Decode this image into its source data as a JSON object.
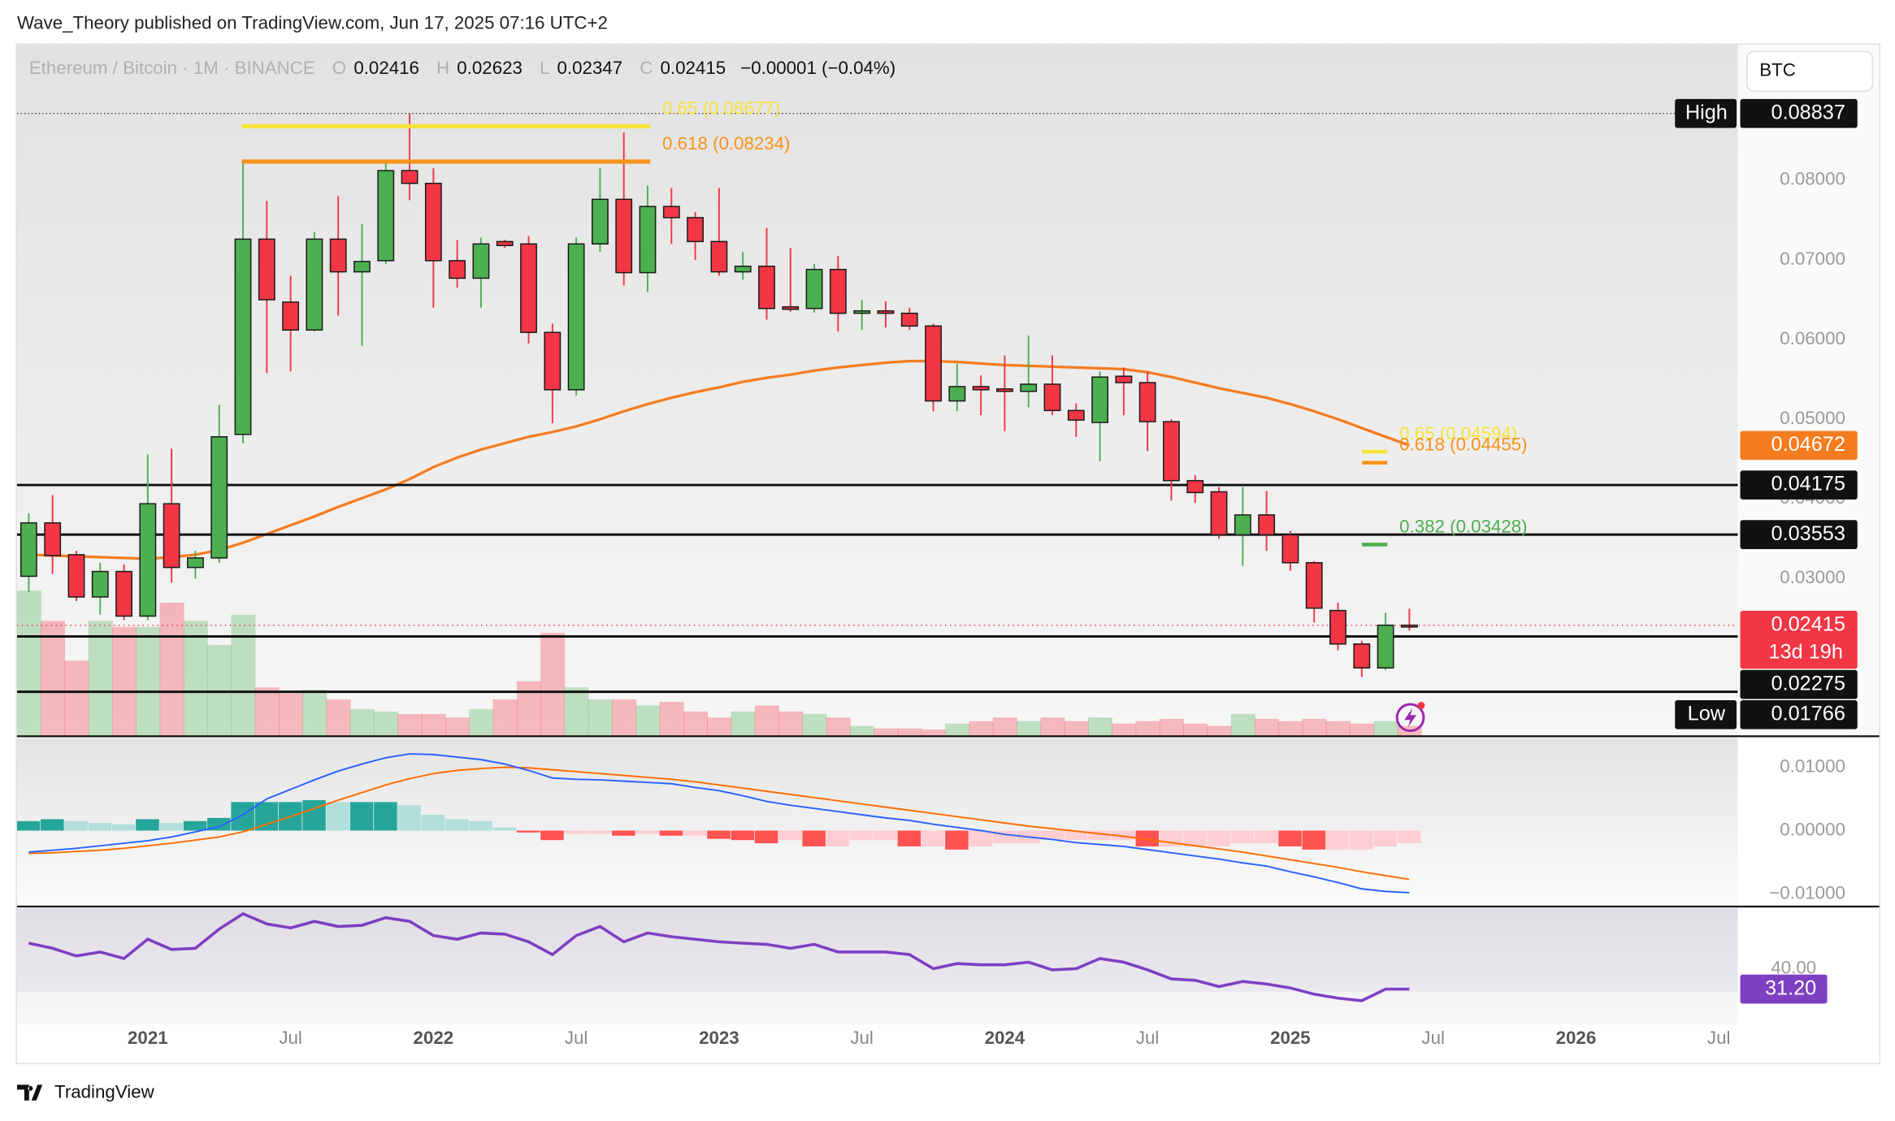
{
  "header": {
    "text": "Wave_Theory published on TradingView.com, Jun 17, 2025 07:16 UTC+2"
  },
  "currency_button": "BTC",
  "footer": {
    "logo": "TradingView"
  },
  "chart_data": [
    {
      "type": "candlestick",
      "title": "Ethereum / Bitcoin · 1M · BINANCE",
      "ohlc_letters": [
        "O",
        "H",
        "L",
        "C"
      ],
      "change": "−0.00001 (−0.04%)",
      "x": [
        "2020-08",
        "2020-09",
        "2020-10",
        "2020-11",
        "2020-12",
        "2021-01",
        "2021-02",
        "2021-03",
        "2021-04",
        "2021-05",
        "2021-06",
        "2021-07",
        "2021-08",
        "2021-09",
        "2021-10",
        "2021-11",
        "2021-12",
        "2022-01",
        "2022-02",
        "2022-03",
        "2022-04",
        "2022-05",
        "2022-06",
        "2022-07",
        "2022-08",
        "2022-09",
        "2022-10",
        "2022-11",
        "2022-12",
        "2023-01",
        "2023-02",
        "2023-03",
        "2023-04",
        "2023-05",
        "2023-06",
        "2023-07",
        "2023-08",
        "2023-09",
        "2023-10",
        "2023-11",
        "2023-12",
        "2024-01",
        "2024-02",
        "2024-03",
        "2024-04",
        "2024-05",
        "2024-06",
        "2024-07",
        "2024-08",
        "2024-09",
        "2024-10",
        "2024-11",
        "2024-12",
        "2025-01",
        "2025-02",
        "2025-03",
        "2025-04",
        "2025-05",
        "2025-06"
      ],
      "open": [
        0.0303,
        0.037,
        0.033,
        0.0277,
        0.0309,
        0.0253,
        0.0394,
        0.0314,
        0.0326,
        0.0481,
        0.0726,
        0.0647,
        0.0612,
        0.0726,
        0.0685,
        0.0699,
        0.0812,
        0.0796,
        0.0699,
        0.0677,
        0.0723,
        0.072,
        0.0609,
        0.0537,
        0.072,
        0.0776,
        0.0684,
        0.0767,
        0.0753,
        0.0723,
        0.0685,
        0.0692,
        0.0641,
        0.0639,
        0.0688,
        0.0633,
        0.0636,
        0.0633,
        0.0617,
        0.0523,
        0.0541,
        0.0538,
        0.0535,
        0.0544,
        0.0511,
        0.0496,
        0.0554,
        0.0546,
        0.0497,
        0.0423,
        0.0409,
        0.0355,
        0.038,
        0.0355,
        0.032,
        0.026,
        0.0218,
        0.0188,
        0.02416
      ],
      "high": [
        0.0382,
        0.0405,
        0.0335,
        0.032,
        0.0318,
        0.0456,
        0.0463,
        0.0335,
        0.0518,
        0.0825,
        0.0774,
        0.068,
        0.0735,
        0.078,
        0.0745,
        0.0825,
        0.08837,
        0.0815,
        0.0725,
        0.0728,
        0.0725,
        0.073,
        0.062,
        0.0728,
        0.0815,
        0.086,
        0.0793,
        0.079,
        0.076,
        0.079,
        0.071,
        0.074,
        0.0715,
        0.0695,
        0.0705,
        0.065,
        0.0648,
        0.064,
        0.062,
        0.057,
        0.0555,
        0.058,
        0.0605,
        0.058,
        0.052,
        0.056,
        0.0565,
        0.056,
        0.05,
        0.043,
        0.0415,
        0.0415,
        0.041,
        0.036,
        0.0322,
        0.027,
        0.0222,
        0.0257,
        0.02623
      ],
      "low": [
        0.0283,
        0.0306,
        0.0272,
        0.0255,
        0.0248,
        0.0248,
        0.0295,
        0.03,
        0.032,
        0.047,
        0.0558,
        0.056,
        0.061,
        0.063,
        0.0592,
        0.0695,
        0.0775,
        0.064,
        0.0665,
        0.064,
        0.0715,
        0.0595,
        0.0495,
        0.053,
        0.071,
        0.0668,
        0.066,
        0.072,
        0.07,
        0.068,
        0.0675,
        0.0625,
        0.0635,
        0.0634,
        0.061,
        0.0612,
        0.0615,
        0.0612,
        0.051,
        0.051,
        0.0505,
        0.0485,
        0.0515,
        0.0505,
        0.0478,
        0.0447,
        0.0505,
        0.046,
        0.0398,
        0.0395,
        0.035,
        0.0316,
        0.0335,
        0.031,
        0.0245,
        0.021,
        0.01766,
        0.0185,
        0.02347
      ],
      "close": [
        0.037,
        0.0329,
        0.0277,
        0.0309,
        0.0253,
        0.0394,
        0.0314,
        0.0326,
        0.0478,
        0.0726,
        0.065,
        0.0612,
        0.0726,
        0.0685,
        0.0698,
        0.0812,
        0.0796,
        0.0699,
        0.0677,
        0.072,
        0.0718,
        0.0609,
        0.0537,
        0.072,
        0.0776,
        0.0684,
        0.0767,
        0.0753,
        0.0723,
        0.0685,
        0.0692,
        0.0639,
        0.0638,
        0.0688,
        0.0633,
        0.0636,
        0.0633,
        0.0617,
        0.0523,
        0.0541,
        0.0537,
        0.0535,
        0.0544,
        0.0511,
        0.0499,
        0.0553,
        0.0546,
        0.0497,
        0.0423,
        0.0408,
        0.0355,
        0.038,
        0.0355,
        0.032,
        0.0263,
        0.0218,
        0.0188,
        0.02416,
        0.02415
      ],
      "up_color": "#4caf50",
      "down_color": "#f23645",
      "xlim": [
        "2020-07",
        "2026-08"
      ],
      "xticks": [
        {
          "value": "2021-01",
          "label": "2021"
        },
        {
          "value": "2021-07",
          "label": "Jul"
        },
        {
          "value": "2022-01",
          "label": "2022"
        },
        {
          "value": "2022-07",
          "label": "Jul"
        },
        {
          "value": "2023-01",
          "label": "2023"
        },
        {
          "value": "2023-07",
          "label": "Jul"
        },
        {
          "value": "2024-01",
          "label": "2024"
        },
        {
          "value": "2024-07",
          "label": "Jul"
        },
        {
          "value": "2025-01",
          "label": "2025"
        },
        {
          "value": "2025-07",
          "label": "Jul"
        },
        {
          "value": "2026-01",
          "label": "2026"
        },
        {
          "value": "2026-07",
          "label": "Jul"
        }
      ],
      "ylim": [
        0.0103,
        0.097
      ],
      "yticks": [
        {
          "value": 0.03,
          "label": "0.03000"
        },
        {
          "value": 0.04,
          "label": "0.04000"
        },
        {
          "value": 0.05,
          "label": "0.05000"
        },
        {
          "value": 0.06,
          "label": "0.06000"
        },
        {
          "value": 0.07,
          "label": "0.07000"
        },
        {
          "value": 0.08,
          "label": "0.08000"
        }
      ],
      "moving_average": {
        "color": "#f57c1f",
        "values": [
          0.033,
          0.0329,
          0.0328,
          0.0327,
          0.0326,
          0.0325,
          0.0327,
          0.033,
          0.0336,
          0.0345,
          0.0356,
          0.0367,
          0.0378,
          0.039,
          0.0401,
          0.0412,
          0.0425,
          0.044,
          0.0452,
          0.0462,
          0.047,
          0.0478,
          0.0484,
          0.0491,
          0.05,
          0.051,
          0.0519,
          0.0527,
          0.0534,
          0.054,
          0.0547,
          0.0552,
          0.0556,
          0.0561,
          0.0565,
          0.0568,
          0.0571,
          0.0573,
          0.0573,
          0.0572,
          0.057,
          0.0568,
          0.0567,
          0.0566,
          0.0565,
          0.0564,
          0.0563,
          0.0559,
          0.0553,
          0.0546,
          0.0539,
          0.0533,
          0.0527,
          0.0519,
          0.051,
          0.05,
          0.0489,
          0.0478,
          0.04672
        ]
      },
      "volume": {
        "values": [
          120,
          95,
          62,
          95,
          90,
          90,
          110,
          95,
          75,
          100,
          40,
          35,
          38,
          30,
          22,
          20,
          18,
          18,
          15,
          22,
          30,
          45,
          85,
          40,
          30,
          30,
          25,
          28,
          20,
          15,
          20,
          25,
          20,
          18,
          15,
          8,
          6,
          6,
          5,
          10,
          12,
          15,
          12,
          15,
          12,
          15,
          10,
          12,
          14,
          10,
          8,
          18,
          14,
          12,
          14,
          12,
          10,
          12,
          8
        ]
      },
      "levels": [
        0.04175,
        0.03553,
        0.02275
      ],
      "unlabeled_levels": [
        0.0158
      ],
      "high_label": "High",
      "low_label": "Low",
      "countdown": "13d 19h",
      "fibs": [
        {
          "label": "0.65 (0.08677)",
          "value": 0.08677,
          "color": "#f7e23b"
        },
        {
          "label": "0.618 (0.08234)",
          "value": 0.08234,
          "color": "#f7931a"
        },
        {
          "label": "0.65 (0.04594)",
          "value": 0.04594,
          "color": "#f7e23b"
        },
        {
          "label": "0.618 (0.04455)",
          "value": 0.04455,
          "color": "#f7931a"
        },
        {
          "label": "0.382 (0.03428)",
          "value": 0.03428,
          "color": "#4caf50"
        }
      ]
    },
    {
      "type": "macd",
      "macd": {
        "color": "#2962ff",
        "values": [
          -0.0034,
          -0.0031,
          -0.0028,
          -0.0024,
          -0.002,
          -0.0016,
          -0.001,
          -0.0002,
          0.0006,
          0.0025,
          0.005,
          0.0065,
          0.008,
          0.0094,
          0.0105,
          0.0115,
          0.0121,
          0.012,
          0.0116,
          0.0112,
          0.0105,
          0.0095,
          0.0083,
          0.0081,
          0.008,
          0.0078,
          0.0076,
          0.0074,
          0.0068,
          0.0063,
          0.0055,
          0.0046,
          0.004,
          0.0035,
          0.003,
          0.0025,
          0.002,
          0.0016,
          0.001,
          0.0005,
          0.0,
          -0.0006,
          -0.001,
          -0.0014,
          -0.0019,
          -0.0022,
          -0.0025,
          -0.003,
          -0.0035,
          -0.004,
          -0.0045,
          -0.0051,
          -0.0056,
          -0.0065,
          -0.0073,
          -0.0082,
          -0.0092,
          -0.0096,
          -0.0098
        ]
      },
      "signal": {
        "color": "#ff6d00",
        "values": [
          -0.0036,
          -0.0035,
          -0.0033,
          -0.0031,
          -0.0028,
          -0.0024,
          -0.002,
          -0.0015,
          -0.001,
          -0.0002,
          0.001,
          0.0022,
          0.0035,
          0.0048,
          0.006,
          0.0072,
          0.0082,
          0.009,
          0.0095,
          0.0098,
          0.01,
          0.0099,
          0.0096,
          0.0093,
          0.009,
          0.0087,
          0.0084,
          0.0081,
          0.0077,
          0.0072,
          0.0067,
          0.0062,
          0.0057,
          0.0052,
          0.0047,
          0.0042,
          0.0037,
          0.0032,
          0.0027,
          0.0022,
          0.0017,
          0.0012,
          0.0007,
          0.0003,
          -0.0001,
          -0.0005,
          -0.0009,
          -0.0014,
          -0.0019,
          -0.0024,
          -0.0029,
          -0.0034,
          -0.004,
          -0.0046,
          -0.0052,
          -0.0058,
          -0.0065,
          -0.0071,
          -0.0077
        ]
      },
      "histogram": {
        "colors": [
          "#26a69a",
          "#b2dfdb",
          "#ff5252",
          "#ffcdd2"
        ],
        "values": [
          0.0015,
          0.0018,
          0.0015,
          0.0012,
          0.001,
          0.0018,
          0.0012,
          0.0015,
          0.002,
          0.0045,
          0.0045,
          0.0045,
          0.0048,
          0.0045,
          0.0045,
          0.0045,
          0.004,
          0.0025,
          0.0018,
          0.0015,
          0.0005,
          -0.0003,
          -0.0015,
          -0.0005,
          -0.0005,
          -0.0008,
          -0.0005,
          -0.0008,
          -0.0008,
          -0.0013,
          -0.0015,
          -0.002,
          -0.0015,
          -0.0025,
          -0.0025,
          -0.0015,
          -0.0015,
          -0.0025,
          -0.0025,
          -0.003,
          -0.0025,
          -0.002,
          -0.002,
          -0.0015,
          -0.0015,
          -0.0015,
          -0.0015,
          -0.0025,
          -0.0025,
          -0.0025,
          -0.0025,
          -0.002,
          -0.002,
          -0.0025,
          -0.003,
          -0.003,
          -0.003,
          -0.0025,
          -0.002
        ]
      },
      "ylim": [
        -0.0119,
        0.0146
      ],
      "yticks": [
        {
          "value": 0.01,
          "label": "0.01000"
        },
        {
          "value": 0,
          "label": "0.00000"
        },
        {
          "value": -0.01,
          "label": "−0.01000"
        }
      ]
    },
    {
      "type": "rsi",
      "color": "#7e3fc2",
      "values": [
        51.0,
        48.8,
        45.5,
        47.2,
        44.4,
        52.7,
        48.3,
        48.8,
        57.1,
        63.7,
        59.3,
        57.6,
        60.4,
        58.2,
        58.7,
        62.0,
        60.4,
        54.3,
        52.7,
        55.4,
        54.9,
        51.6,
        46.1,
        54.3,
        58.2,
        51.6,
        55.4,
        53.8,
        52.7,
        51.6,
        51.0,
        50.5,
        48.8,
        50.5,
        47.2,
        47.2,
        47.2,
        46.1,
        40.0,
        42.2,
        41.7,
        41.7,
        42.8,
        39.5,
        40.0,
        44.4,
        42.8,
        39.5,
        35.6,
        35.0,
        32.3,
        34.5,
        33.4,
        31.7,
        29.0,
        27.3,
        26.2,
        31.2,
        31.2
      ],
      "last_label": "31.20",
      "band": [
        30,
        70
      ],
      "ylim": [
        16,
        66
      ],
      "yticks": [
        {
          "value": 40,
          "label": "40.00"
        }
      ]
    }
  ]
}
